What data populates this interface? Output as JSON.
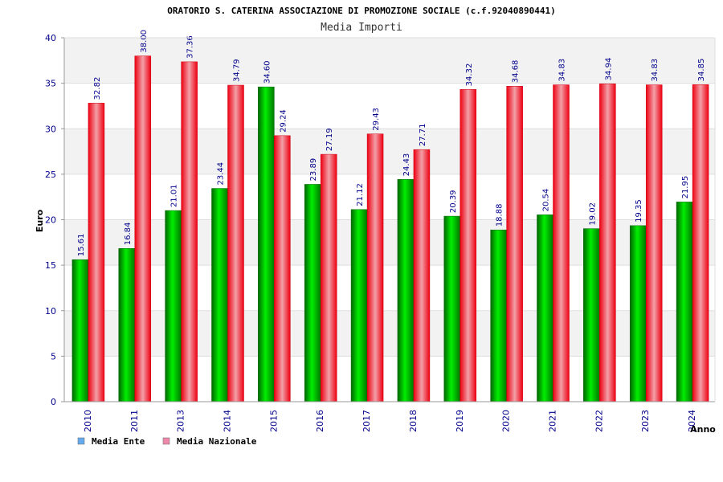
{
  "chart_data": {
    "type": "bar",
    "title": "ORATORIO S. CATERINA ASSOCIAZIONE DI PROMOZIONE SOCIALE (c.f.92040890441)",
    "subtitle": "Media Importi",
    "xlabel": "Anno",
    "ylabel": "Euro",
    "ylim": [
      0,
      40
    ],
    "yticks": [
      0,
      5,
      10,
      15,
      20,
      25,
      30,
      35,
      40
    ],
    "categories": [
      "2010",
      "2011",
      "2013",
      "2014",
      "2015",
      "2016",
      "2017",
      "2018",
      "2019",
      "2020",
      "2021",
      "2022",
      "2023",
      "2024"
    ],
    "series": [
      {
        "name": "Media Ente",
        "color": "#00aa00",
        "legend_color": "#66aaee",
        "values": [
          15.61,
          16.84,
          21.01,
          23.44,
          34.6,
          23.89,
          21.12,
          24.43,
          20.39,
          18.88,
          20.54,
          19.02,
          19.35,
          21.95
        ],
        "labels": [
          "15.61",
          "16.84",
          "21.01",
          "23.44",
          "34.60",
          "23.89",
          "21.12",
          "24.43",
          "20.39",
          "18.88",
          "20.54",
          "19.02",
          "19.35",
          "21.95"
        ]
      },
      {
        "name": "Media Nazionale",
        "color": "#ee1122",
        "legend_color": "#ee88aa",
        "values": [
          32.82,
          38.0,
          37.36,
          34.79,
          29.24,
          27.19,
          29.43,
          27.71,
          34.32,
          34.68,
          34.83,
          34.94,
          34.83,
          34.85
        ],
        "labels": [
          "32.82",
          "38.00",
          "37.36",
          "34.79",
          "29.24",
          "27.19",
          "29.43",
          "27.71",
          "34.32",
          "34.68",
          "34.83",
          "34.94",
          "34.83",
          "34.85"
        ]
      }
    ],
    "grid": true,
    "legend": "bottom-left"
  }
}
